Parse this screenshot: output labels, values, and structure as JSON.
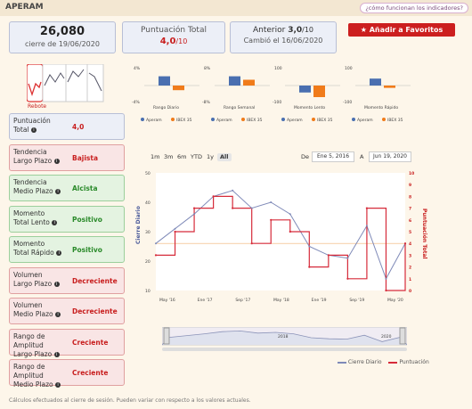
{
  "header": {
    "title": "APERAM",
    "help_link": "¿cómo funcionan los indicadores?"
  },
  "price": {
    "value": "26,080",
    "date": "cierre de 19/06/2020"
  },
  "score": {
    "label": "Puntuación Total",
    "value": "4,0",
    "denominator": "/10"
  },
  "previous": {
    "label": "Anterior",
    "value": "3,0",
    "denominator": "/10",
    "changed": "Cambió el 16/06/2020"
  },
  "favorite_button": "Añadir a Favoritos",
  "thumb": {
    "rebote_label": "Rebote"
  },
  "bar_groups": [
    {
      "label": "Rango Diario",
      "ticks": [
        "4%",
        "",
        "-4%"
      ]
    },
    {
      "label": "Rango Semanal",
      "ticks": [
        "8%",
        "",
        "-8%"
      ]
    },
    {
      "label": "Momento Lento",
      "ticks": [
        "100",
        "",
        "-100"
      ]
    },
    {
      "label": "Momento Rápido",
      "ticks": [
        "100",
        "",
        "-100"
      ]
    }
  ],
  "bar_legend": {
    "a": "Aperam",
    "b": "IBEX 35"
  },
  "indicators": [
    {
      "label1": "Puntuación",
      "label2": "Total",
      "value": "4,0",
      "style": "blue"
    },
    {
      "label1": "Tendencia",
      "label2": "Largo Plazo",
      "value": "Bajista",
      "style": "red"
    },
    {
      "label1": "Tendencia",
      "label2": "Medio Plazo",
      "value": "Alcista",
      "style": "green"
    },
    {
      "label1": "Momento",
      "label2": "Total Lento",
      "value": "Positivo",
      "style": "green"
    },
    {
      "label1": "Momento",
      "label2": "Total Rápido",
      "value": "Positivo",
      "style": "green"
    },
    {
      "label1": "Volumen",
      "label2": "Largo Plazo",
      "value": "Decreciente",
      "style": "red"
    },
    {
      "label1": "Volumen",
      "label2": "Medio Plazo",
      "value": "Decreciente",
      "style": "red"
    },
    {
      "label1": "Rango de Amplitud",
      "label2": "Largo Plazo",
      "value": "Creciente",
      "style": "red"
    },
    {
      "label1": "Rango de Amplitud",
      "label2": "Medio Plazo",
      "value": "Creciente",
      "style": "red"
    }
  ],
  "range_buttons": [
    "1m",
    "3m",
    "6m",
    "YTD",
    "1y",
    "All"
  ],
  "range_selected": "All",
  "date_from_label": "De",
  "date_from": "Ene 5, 2016",
  "date_to_label": "A",
  "date_to": "Jun 19, 2020",
  "navigator_labels": [
    "2018",
    "2020"
  ],
  "footer": "Cálculos efectuados al cierre de sesión. Pueden variar con respecto a los valores actuales.",
  "colors": {
    "accent": "#cc1f1f",
    "price_line": "#7f8ab8",
    "score_line": "#d62b3a"
  },
  "chart_data": {
    "type": "line",
    "x": [
      "May 16",
      "Sep 16",
      "Ene 17",
      "May 17",
      "Sep 17",
      "Ene 18",
      "May 18",
      "Sep 18",
      "Ene 19",
      "May 19",
      "Sep 19",
      "Ene 20",
      "Abr 20",
      "Jun 20"
    ],
    "series": [
      {
        "name": "Cierre Diario",
        "axis": "left",
        "values": [
          26,
          31,
          36,
          42,
          44,
          38,
          40,
          36,
          25,
          22,
          21,
          32,
          14,
          26
        ]
      },
      {
        "name": "Puntuación",
        "axis": "right",
        "values": [
          3,
          5,
          7,
          8,
          7,
          4,
          6,
          5,
          2,
          3,
          1,
          7,
          0,
          4
        ]
      }
    ],
    "ylabel": "Cierre Diario",
    "y2label": "Puntuación Total",
    "ylim": [
      10,
      50
    ],
    "y2lim": [
      0,
      10
    ],
    "yticks": [
      "50",
      "40",
      "30",
      "20",
      "10"
    ],
    "y2ticks": [
      "10",
      "9",
      "8",
      "7",
      "6",
      "5",
      "4",
      "3",
      "2",
      "1",
      "0"
    ],
    "xticks": [
      "May '16",
      "Ene '17",
      "Sep '17",
      "May '18",
      "Ene '19",
      "Sep '19",
      "May '20"
    ]
  }
}
